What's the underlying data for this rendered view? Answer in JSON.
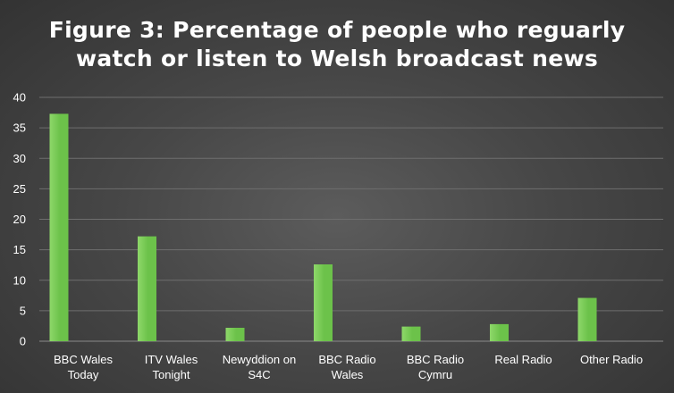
{
  "chart_data": {
    "type": "bar",
    "title_lines": [
      "Figure 3: Percentage of people who reguarly",
      "watch or listen to Welsh broadcast news"
    ],
    "categories": [
      [
        "BBC Wales",
        "Today"
      ],
      [
        "ITV Wales",
        "Tonight"
      ],
      [
        "Newyddion on",
        "S4C"
      ],
      [
        "BBC Radio",
        "Wales"
      ],
      [
        "BBC Radio",
        "Cymru"
      ],
      [
        "Real Radio"
      ],
      [
        "Other Radio"
      ]
    ],
    "values": [
      37.3,
      17.2,
      2.2,
      12.6,
      2.4,
      2.8,
      7.1
    ],
    "yticks": [
      "0",
      "5",
      "10",
      "15",
      "20",
      "25",
      "30",
      "35",
      "40"
    ],
    "ylim": [
      0,
      40
    ],
    "xlabel": "",
    "ylabel": "",
    "grid": true,
    "legend": "none",
    "colors": {
      "bar": "#6cc24a",
      "bar_light": "#8ed86a",
      "grid": "#6e6e6e",
      "axis": "#8a8a8a",
      "text": "#ffffff"
    }
  }
}
